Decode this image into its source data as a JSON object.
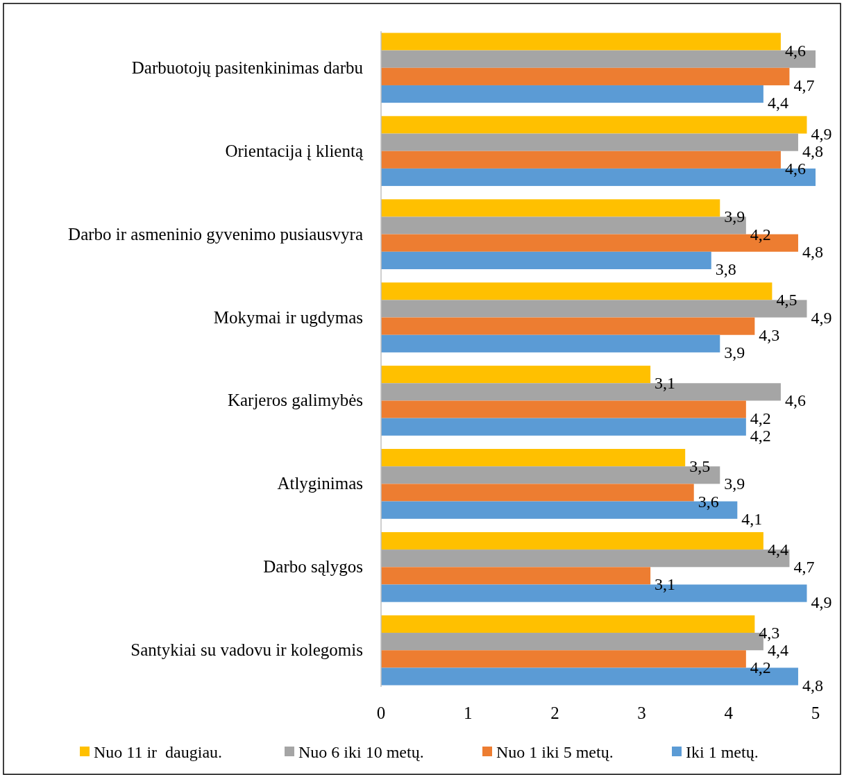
{
  "chart_data": {
    "type": "bar",
    "orientation": "horizontal",
    "categories": [
      "Darbuotojų pasitenkinimas darbu",
      "Orientacija į klientą",
      "Darbo ir asmeninio gyvenimo pusiausvyra",
      "Mokymai ir ugdymas",
      "Karjeros galimybės",
      "Atlyginimas",
      "Darbo sąlygos",
      "Santykiai su vadovu ir kolegomis"
    ],
    "series": [
      {
        "name": "Nuo 11 ir  daugiau.",
        "color": "#ffc000",
        "values": [
          4.6,
          4.9,
          3.9,
          4.5,
          3.1,
          3.5,
          4.4,
          4.3
        ],
        "value_labels": [
          "4,6",
          "4,9",
          "3,9",
          "4,5",
          "3,1",
          "3,5",
          "4,4",
          "4,3"
        ]
      },
      {
        "name": "Nuo 6 iki 10 metų.",
        "color": "#a5a5a5",
        "values": [
          5.0,
          4.8,
          4.2,
          4.9,
          4.6,
          3.9,
          4.7,
          4.4
        ],
        "value_labels": [
          null,
          "4,8",
          "4,2",
          "4,9",
          "4,6",
          "3,9",
          "4,7",
          "4,4"
        ]
      },
      {
        "name": "Nuo 1 iki 5 metų.",
        "color": "#ed7d31",
        "values": [
          4.7,
          4.6,
          4.8,
          4.3,
          4.2,
          3.6,
          3.1,
          4.2
        ],
        "value_labels": [
          "4,7",
          "4,6",
          "4,8",
          "4,3",
          "4,2",
          "3,6",
          "3,1",
          "4,2"
        ]
      },
      {
        "name": "Iki 1 metų.",
        "color": "#5b9bd5",
        "values": [
          4.4,
          5.0,
          3.8,
          3.9,
          4.2,
          4.1,
          4.9,
          4.8
        ],
        "value_labels": [
          "4,4",
          null,
          "3,8",
          "3,9",
          "4,2",
          "4,1",
          "4,9",
          "4,8"
        ]
      }
    ],
    "xlim": [
      0,
      5
    ],
    "xticks": [
      0,
      1,
      2,
      3,
      4,
      5
    ],
    "grid": false,
    "legend": "bottom"
  }
}
